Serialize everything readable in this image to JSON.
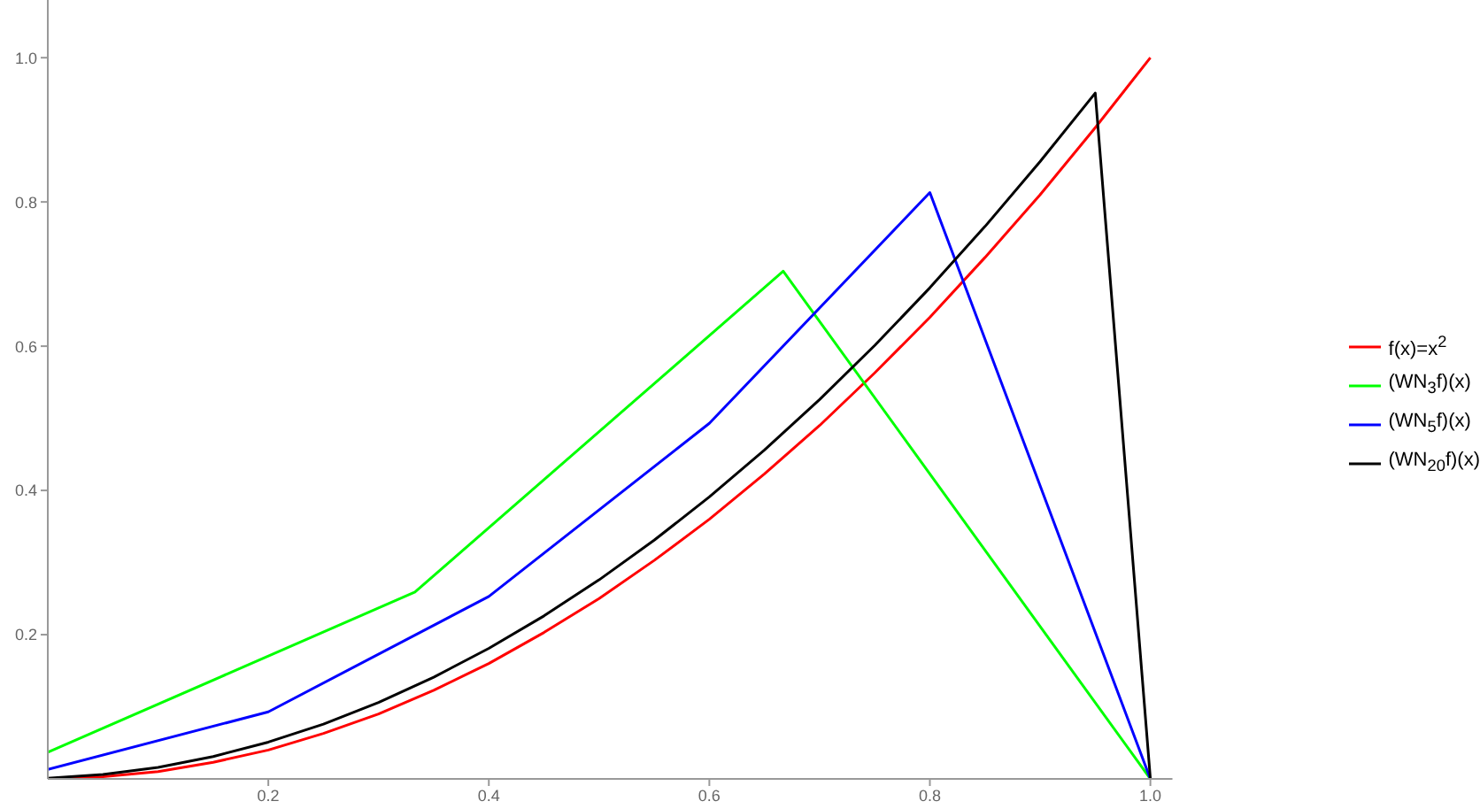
{
  "chart_data": {
    "type": "line",
    "xlim": [
      0,
      1.02
    ],
    "ylim": [
      0,
      1.08
    ],
    "xticks": [
      0.2,
      0.4,
      0.6,
      0.8,
      {
        "value": 1,
        "label": "1.0"
      }
    ],
    "yticks": [
      0.2,
      0.4,
      0.6,
      0.8,
      {
        "value": 1,
        "label": "1.0"
      }
    ],
    "grid": false,
    "legend": "right",
    "marker": "none",
    "line_style": "solid",
    "series": [
      {
        "name": "f(x)=x$^{2}$",
        "color": "#ff0000",
        "x": [
          0,
          0.05,
          0.1,
          0.15,
          0.2,
          0.25,
          0.3,
          0.35,
          0.4,
          0.45,
          0.5,
          0.55,
          0.6,
          0.65,
          0.7,
          0.75,
          0.8,
          0.85,
          0.9,
          0.95,
          1
        ],
        "values": [
          0,
          0.003,
          0.01,
          0.023,
          0.04,
          0.063,
          0.09,
          0.123,
          0.16,
          0.203,
          0.25,
          0.303,
          0.36,
          0.423,
          0.49,
          0.563,
          0.64,
          0.723,
          0.81,
          0.903,
          1
        ]
      },
      {
        "name": "(WN$_{3}$f)(x)",
        "color": "#00ff00",
        "x": [
          0,
          0.333,
          0.667,
          1
        ],
        "values": [
          0.037,
          0.259,
          0.704,
          0
        ]
      },
      {
        "name": "(WN$_{5}$f)(x)",
        "color": "#0000ff",
        "x": [
          0,
          0.2,
          0.4,
          0.6,
          0.8,
          1
        ],
        "values": [
          0.013,
          0.093,
          0.253,
          0.493,
          0.813,
          0
        ]
      },
      {
        "name": "(WN$_{20}$f)(x)",
        "color": "#000000",
        "x": [
          0,
          0.05,
          0.1,
          0.15,
          0.2,
          0.25,
          0.3,
          0.35,
          0.4,
          0.45,
          0.5,
          0.55,
          0.6,
          0.65,
          0.7,
          0.75,
          0.8,
          0.85,
          0.9,
          0.95,
          1
        ],
        "values": [
          0.001,
          0.006,
          0.016,
          0.031,
          0.051,
          0.076,
          0.106,
          0.141,
          0.181,
          0.226,
          0.276,
          0.331,
          0.391,
          0.456,
          0.526,
          0.601,
          0.681,
          0.766,
          0.856,
          0.951,
          0
        ]
      }
    ]
  }
}
